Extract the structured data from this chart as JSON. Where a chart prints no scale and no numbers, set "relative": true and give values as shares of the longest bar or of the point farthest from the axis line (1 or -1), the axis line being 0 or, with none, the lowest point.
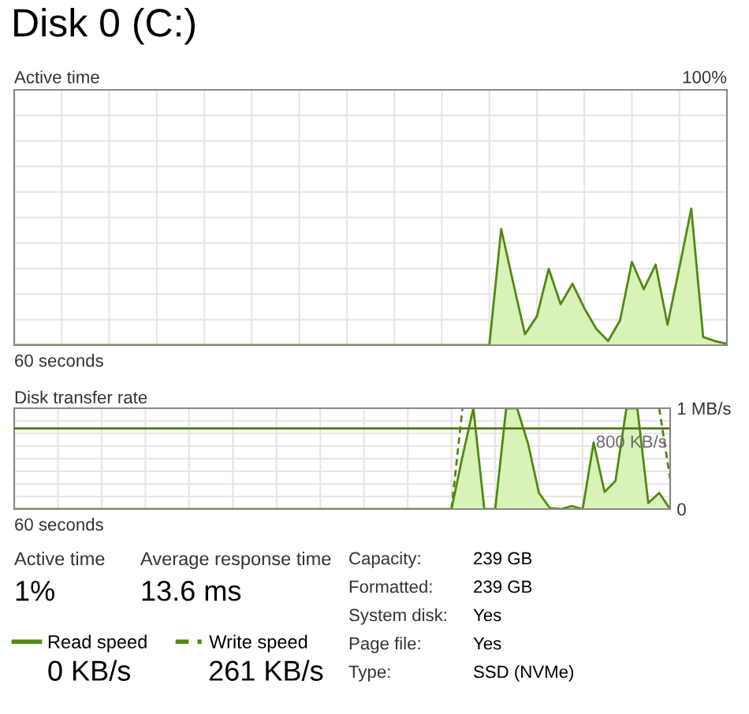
{
  "chart_data": [
    {
      "type": "area",
      "title": "Disk 0 (C:)",
      "subtitle": "Active time",
      "relative": true,
      "grid": true,
      "categories": [
        null,
        null,
        null,
        null,
        null,
        null,
        null,
        null,
        null,
        null,
        null,
        null,
        null,
        null,
        null,
        null,
        null,
        null,
        null,
        null,
        null,
        null,
        null,
        null,
        null,
        null,
        null,
        null,
        null,
        null,
        null,
        null,
        null,
        null,
        null,
        null,
        null,
        null,
        null,
        null,
        null,
        null,
        null,
        null,
        null,
        null,
        null,
        null,
        null,
        null,
        null,
        null,
        null,
        null,
        null,
        null,
        null,
        null,
        null,
        null,
        null
      ],
      "annotations": [
        "100%",
        "60 seconds"
      ],
      "series": [
        {
          "color": "#4f8a10",
          "values": [
            0,
            0,
            0,
            0,
            0,
            0,
            0,
            0,
            0,
            0,
            0,
            0,
            0,
            0,
            0,
            0,
            0,
            0,
            0,
            0,
            0,
            0,
            0,
            0,
            0,
            0,
            0,
            0,
            0,
            0,
            0,
            0,
            0,
            0,
            0,
            0,
            0,
            0,
            0,
            0,
            0,
            0.85,
            0.46,
            0.08,
            0.21,
            0.56,
            0.3,
            0.45,
            0.27,
            0.12,
            0.03,
            0.18,
            0.61,
            0.41,
            0.59,
            0.15,
            0.57,
            1,
            0.06,
            0.03,
            0.01
          ]
        }
      ]
    },
    {
      "type": "area",
      "subtitle": "Disk transfer rate",
      "grid": true,
      "legend": "bottom",
      "categories": [
        null,
        null,
        null,
        null,
        null,
        null,
        null,
        null,
        null,
        null,
        null,
        null,
        null,
        null,
        null,
        null,
        null,
        null,
        null,
        null,
        null,
        null,
        null,
        null,
        null,
        null,
        null,
        null,
        null,
        null,
        null,
        null,
        null,
        null,
        null,
        null,
        null,
        null,
        null,
        null,
        null,
        null,
        null,
        null,
        null,
        null,
        null,
        null,
        null,
        null,
        null,
        null,
        null,
        null,
        null,
        null,
        null,
        null,
        null,
        null,
        null
      ],
      "ylim": [
        0,
        1
      ],
      "yticks": [
        {
          "value": 1,
          "label": "1 MB/s"
        },
        0
      ],
      "ref_lines": [
        {
          "axis": "y",
          "value": 0.8,
          "label": "800 KB/s",
          "color": "#4f7a18"
        }
      ],
      "annotations": [
        "60 seconds",
        "0 KB/s",
        "261 KB/s"
      ],
      "series": [
        {
          "name": "Read speed",
          "color": "#4f8a10",
          "line_style": "solid",
          "values": [
            0,
            0,
            0,
            0,
            0,
            0,
            0,
            0,
            0,
            0,
            0,
            0,
            0,
            0,
            0,
            0,
            0,
            0,
            0,
            0,
            0,
            0,
            0,
            0,
            0,
            0,
            0,
            0,
            0,
            0,
            0,
            0,
            0,
            0,
            0,
            0,
            0,
            0,
            0,
            0,
            0,
            0.52,
            1,
            0,
            0,
            1,
            1,
            0.65,
            0.16,
            0.01,
            0,
            0.03,
            0,
            0.66,
            0.17,
            0.28,
            1,
            1,
            0.06,
            0.16,
            0
          ]
        },
        {
          "name": "Write speed",
          "type": "line",
          "color": "#4f8a10",
          "line_style": "dashed",
          "values": [
            null,
            null,
            null,
            null,
            null,
            null,
            null,
            null,
            null,
            null,
            null,
            null,
            null,
            null,
            null,
            null,
            null,
            null,
            null,
            null,
            null,
            null,
            null,
            null,
            null,
            null,
            null,
            null,
            null,
            null,
            null,
            null,
            null,
            null,
            null,
            null,
            null,
            null,
            null,
            null,
            0,
            1,
            null,
            null,
            null,
            null,
            null,
            null,
            null,
            null,
            null,
            null,
            null,
            null,
            null,
            null,
            null,
            null,
            null,
            1,
            0.3
          ]
        }
      ]
    },
    {
      "type": "other",
      "annotations": [
        "Active time",
        "1%",
        "Average response time",
        "13.6 ms",
        "Capacity:",
        "239 GB",
        "Formatted:",
        "239 GB",
        "System disk:",
        "Yes",
        "Page file:",
        "Yes",
        "Type:",
        "SSD (NVMe)"
      ]
    }
  ]
}
